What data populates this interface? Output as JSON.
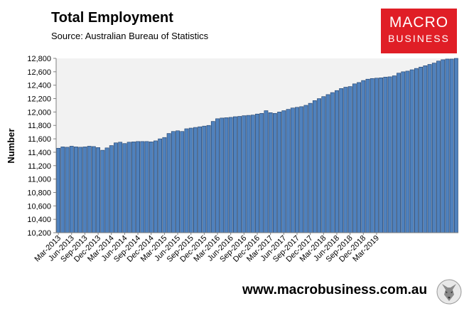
{
  "title": "Total Employment",
  "source": "Source: Australian Bureau of Statistics",
  "logo": {
    "line1": "MACRO",
    "line2": "BUSINESS",
    "icon": "wolf-icon"
  },
  "footer": "www.macrobusiness.com.au",
  "colors": {
    "bar": "#4f81bd",
    "bar_edge": "#1f3f6a",
    "plot_bg": "#f2f2f2",
    "logo_bg": "#e01e26"
  },
  "chart_data": {
    "type": "bar",
    "title": "Total Employment",
    "ylabel": "Number",
    "xlabel": "",
    "ylim": [
      10200,
      12800
    ],
    "yticks": [
      10200,
      10400,
      10600,
      10800,
      11000,
      11200,
      11400,
      11600,
      11800,
      12000,
      12200,
      12400,
      12600,
      12800
    ],
    "ytick_labels": [
      "10,200",
      "10,400",
      "10,600",
      "10,800",
      "11,000",
      "11,200",
      "11,400",
      "11,600",
      "11,800",
      "12,000",
      "12,200",
      "12,400",
      "12,600",
      "12,800"
    ],
    "x_tick_labels": [
      "Mar-2013",
      "Jun-2013",
      "Sep-2013",
      "Dec-2013",
      "Mar-2014",
      "Jun-2014",
      "Sep-2014",
      "Dec-2014",
      "Mar-2015",
      "Jun-2015",
      "Sep-2015",
      "Dec-2015",
      "Mar-2016",
      "Jun-2016",
      "Sep-2016",
      "Dec-2016",
      "Mar-2017",
      "Jun-2017",
      "Sep-2017",
      "Dec-2017",
      "Mar-2018",
      "Jun-2018",
      "Sep-2018",
      "Dec-2018",
      "Mar-2019"
    ],
    "grid": false,
    "values": [
      11460,
      11480,
      11475,
      11490,
      11480,
      11475,
      11480,
      11490,
      11485,
      11470,
      11430,
      11465,
      11500,
      11540,
      11550,
      11530,
      11550,
      11555,
      11560,
      11560,
      11560,
      11555,
      11570,
      11600,
      11620,
      11680,
      11710,
      11720,
      11710,
      11750,
      11760,
      11770,
      11780,
      11790,
      11800,
      11860,
      11900,
      11910,
      11915,
      11920,
      11930,
      11935,
      11945,
      11950,
      11955,
      11970,
      11980,
      12020,
      11990,
      11980,
      12000,
      12020,
      12040,
      12060,
      12070,
      12080,
      12100,
      12130,
      12170,
      12200,
      12230,
      12260,
      12290,
      12320,
      12350,
      12370,
      12380,
      12420,
      12440,
      12470,
      12490,
      12500,
      12505,
      12510,
      12520,
      12525,
      12540,
      12580,
      12600,
      12610,
      12630,
      12650,
      12670,
      12690,
      12710,
      12730,
      12760,
      12780,
      12790,
      12790,
      12800
    ]
  }
}
